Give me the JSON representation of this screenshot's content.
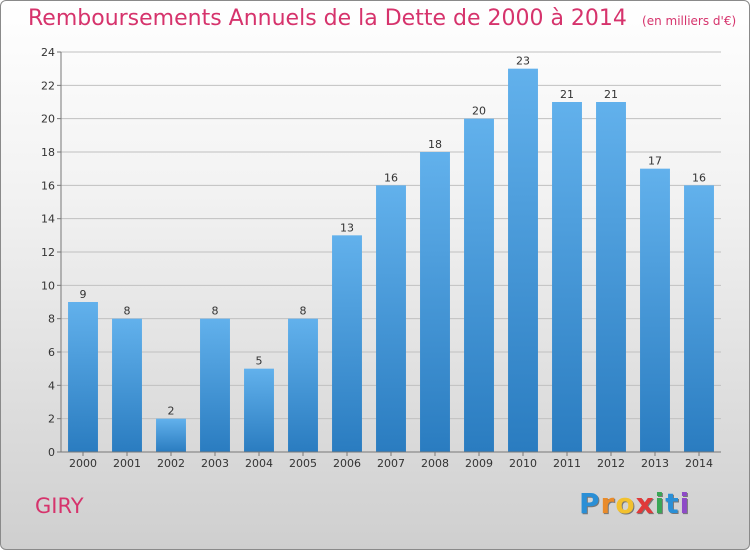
{
  "title": "Remboursements Annuels de la Dette de 2000 à 2014",
  "unit_label": "(en milliers d'€)",
  "city": "GIRY",
  "logo": {
    "text": "Proxiti",
    "letters": [
      "P",
      "r",
      "o",
      "x",
      "i",
      "t",
      "i"
    ],
    "colors": [
      "#2a8fd6",
      "#e98b2a",
      "#f2c12e",
      "#e03a3a",
      "#3aa655",
      "#2a8fd6",
      "#8e4bc7"
    ]
  },
  "colors": {
    "bar_top": "#62b1ec",
    "bar_bottom": "#2a7cc0",
    "title": "#d6336c",
    "grid": "#c0c0c0"
  },
  "chart_data": {
    "type": "bar",
    "title": "Remboursements Annuels de la Dette de 2000 à 2014",
    "categories": [
      "2000",
      "2001",
      "2002",
      "2003",
      "2004",
      "2005",
      "2006",
      "2007",
      "2008",
      "2009",
      "2010",
      "2011",
      "2012",
      "2013",
      "2014"
    ],
    "values": [
      9,
      8,
      2,
      8,
      5,
      8,
      13,
      16,
      18,
      20,
      23,
      21,
      21,
      17,
      16
    ],
    "ylim": [
      0,
      24
    ],
    "yticks": [
      0,
      2,
      4,
      6,
      8,
      10,
      12,
      14,
      16,
      18,
      20,
      22,
      24
    ],
    "grid": true,
    "data_labels": true
  }
}
